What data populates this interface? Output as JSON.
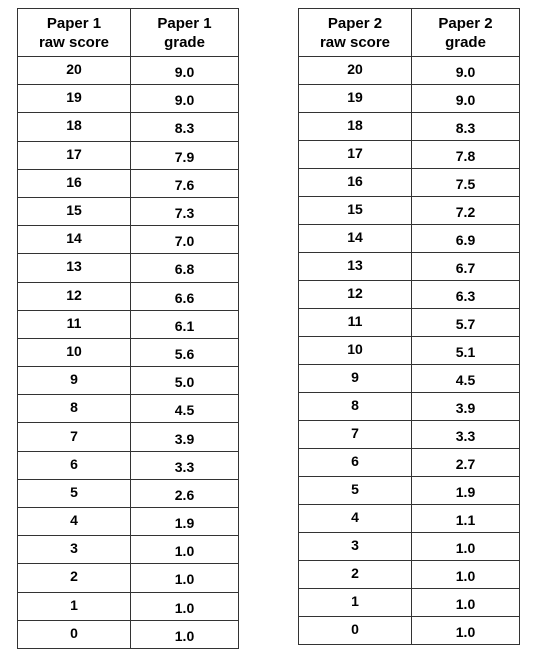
{
  "tables": [
    {
      "score_header": [
        "Paper 1",
        "raw score"
      ],
      "grade_header": [
        "Paper 1",
        "grade"
      ],
      "rows": [
        {
          "score": "20",
          "grade": "9.0"
        },
        {
          "score": "19",
          "grade": "9.0"
        },
        {
          "score": "18",
          "grade": "8.3"
        },
        {
          "score": "17",
          "grade": "7.9"
        },
        {
          "score": "16",
          "grade": "7.6"
        },
        {
          "score": "15",
          "grade": "7.3"
        },
        {
          "score": "14",
          "grade": "7.0"
        },
        {
          "score": "13",
          "grade": "6.8"
        },
        {
          "score": "12",
          "grade": "6.6"
        },
        {
          "score": "11",
          "grade": "6.1"
        },
        {
          "score": "10",
          "grade": "5.6"
        },
        {
          "score": "9",
          "grade": "5.0"
        },
        {
          "score": "8",
          "grade": "4.5"
        },
        {
          "score": "7",
          "grade": "3.9"
        },
        {
          "score": "6",
          "grade": "3.3"
        },
        {
          "score": "5",
          "grade": "2.6"
        },
        {
          "score": "4",
          "grade": "1.9"
        },
        {
          "score": "3",
          "grade": "1.0"
        },
        {
          "score": "2",
          "grade": "1.0"
        },
        {
          "score": "1",
          "grade": "1.0"
        },
        {
          "score": "0",
          "grade": "1.0"
        }
      ]
    },
    {
      "score_header": [
        "Paper 2",
        "raw score"
      ],
      "grade_header": [
        "Paper 2",
        "grade"
      ],
      "rows": [
        {
          "score": "20",
          "grade": "9.0"
        },
        {
          "score": "19",
          "grade": "9.0"
        },
        {
          "score": "18",
          "grade": "8.3"
        },
        {
          "score": "17",
          "grade": "7.8"
        },
        {
          "score": "16",
          "grade": "7.5"
        },
        {
          "score": "15",
          "grade": "7.2"
        },
        {
          "score": "14",
          "grade": "6.9"
        },
        {
          "score": "13",
          "grade": "6.7"
        },
        {
          "score": "12",
          "grade": "6.3"
        },
        {
          "score": "11",
          "grade": "5.7"
        },
        {
          "score": "10",
          "grade": "5.1"
        },
        {
          "score": "9",
          "grade": "4.5"
        },
        {
          "score": "8",
          "grade": "3.9"
        },
        {
          "score": "7",
          "grade": "3.3"
        },
        {
          "score": "6",
          "grade": "2.7"
        },
        {
          "score": "5",
          "grade": "1.9"
        },
        {
          "score": "4",
          "grade": "1.1"
        },
        {
          "score": "3",
          "grade": "1.0"
        },
        {
          "score": "2",
          "grade": "1.0"
        },
        {
          "score": "1",
          "grade": "1.0"
        },
        {
          "score": "0",
          "grade": "1.0"
        }
      ]
    }
  ]
}
